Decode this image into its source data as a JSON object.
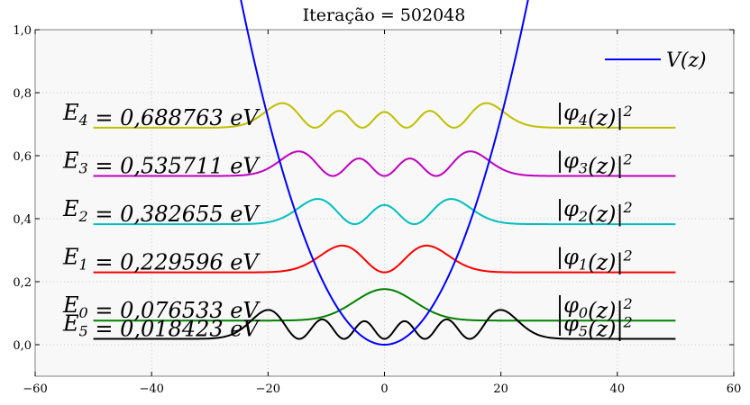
{
  "chart_data": {
    "type": "line",
    "title": "Iteração = 502048",
    "xlim": [
      -60,
      60
    ],
    "ylim": [
      -0.1,
      1.0
    ],
    "xticks": [
      -60,
      -40,
      -20,
      0,
      20,
      40,
      60
    ],
    "xtick_labels": [
      "−60",
      "−40",
      "−20",
      "0",
      "20",
      "40",
      "60"
    ],
    "yticks": [
      0.0,
      0.2,
      0.4,
      0.6,
      0.8,
      1.0
    ],
    "ytick_labels": [
      "0,0",
      "0,2",
      "0,4",
      "0,6",
      "0,8",
      "1,0"
    ],
    "grid": true,
    "legend": {
      "position": "top-right",
      "entries": [
        {
          "label": "V(z)",
          "color": "#0000ff"
        }
      ]
    },
    "potential": {
      "name": "V(z)",
      "color": "#0000ff",
      "coefficient": 0.0018,
      "x_range": [
        -26,
        26
      ]
    },
    "states": [
      {
        "label": "E_0 = 0,076533 eV",
        "prob_label": "|φ_0(z)|^2",
        "n": 0,
        "energy": 0.076533,
        "amplitude": 0.1,
        "color": "#008000"
      },
      {
        "label": "E_1 = 0,229596 eV",
        "prob_label": "|φ_1(z)|^2",
        "n": 1,
        "energy": 0.229596,
        "amplitude": 0.085,
        "color": "#ff0000"
      },
      {
        "label": "E_2 = 0,382655 eV",
        "prob_label": "|φ_2(z)|^2",
        "n": 2,
        "energy": 0.382655,
        "amplitude": 0.08,
        "color": "#00bfbf"
      },
      {
        "label": "E_3 = 0,535711 eV",
        "prob_label": "|φ_3(z)|^2",
        "n": 3,
        "energy": 0.535711,
        "amplitude": 0.078,
        "color": "#bf00bf"
      },
      {
        "label": "E_4 = 0,688763 eV",
        "prob_label": "|φ_4(z)|^2",
        "n": 4,
        "energy": 0.688763,
        "amplitude": 0.078,
        "color": "#bfbf00"
      },
      {
        "label": "E_5 = 0,018423 eV",
        "prob_label": "|φ_5(z)|^2",
        "n": 5,
        "energy": 0.018423,
        "amplitude": 0.092,
        "color": "#000000"
      }
    ]
  }
}
